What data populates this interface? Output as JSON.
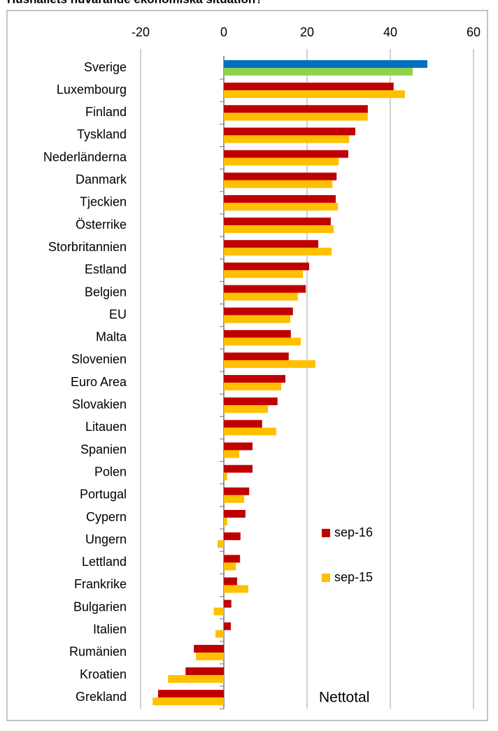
{
  "chart_data": {
    "type": "bar",
    "orientation": "horizontal",
    "title": "Hushållets nuvarande ekonomiska situation?",
    "annotation": "Nettotal",
    "categories": [
      "Sverige",
      "Luxembourg",
      "Finland",
      "Tyskland",
      "Nederländerna",
      "Danmark",
      "Tjeckien",
      "Österrike",
      "Storbritannien",
      "Estland",
      "Belgien",
      "EU",
      "Malta",
      "Slovenien",
      "Euro Area",
      "Slovakien",
      "Litauen",
      "Spanien",
      "Polen",
      "Portugal",
      "Cypern",
      "Ungern",
      "Lettland",
      "Frankrike",
      "Bulgarien",
      "Italien",
      "Rumänien",
      "Kroatien",
      "Grekland"
    ],
    "series": [
      {
        "name": "sep-16",
        "color": "#c00000",
        "point_colors": [
          {
            "index": 0,
            "color": "#0070c0"
          }
        ],
        "values": [
          48.9,
          40.8,
          34.6,
          31.6,
          29.9,
          27.1,
          26.9,
          25.7,
          22.7,
          20.5,
          19.7,
          16.6,
          16.1,
          15.6,
          14.8,
          12.9,
          9.2,
          6.9,
          6.9,
          6.1,
          5.2,
          4.0,
          3.9,
          3.2,
          1.8,
          1.7,
          -7.2,
          -9.2,
          -15.8
        ]
      },
      {
        "name": "sep-15",
        "color": "#ffc000",
        "point_colors": [
          {
            "index": 0,
            "color": "#92d050"
          }
        ],
        "values": [
          45.4,
          43.5,
          34.6,
          30.1,
          27.6,
          26.1,
          27.4,
          26.4,
          25.9,
          19.0,
          17.8,
          16.0,
          18.5,
          22.0,
          13.8,
          10.6,
          12.6,
          3.7,
          0.8,
          4.9,
          0.8,
          -1.5,
          2.9,
          5.9,
          -2.4,
          -2.0,
          -6.7,
          -13.4,
          -17.1
        ]
      }
    ],
    "xlim": [
      -20,
      60
    ],
    "xticks": [
      -20,
      0,
      20,
      40,
      60
    ],
    "grid": true
  }
}
